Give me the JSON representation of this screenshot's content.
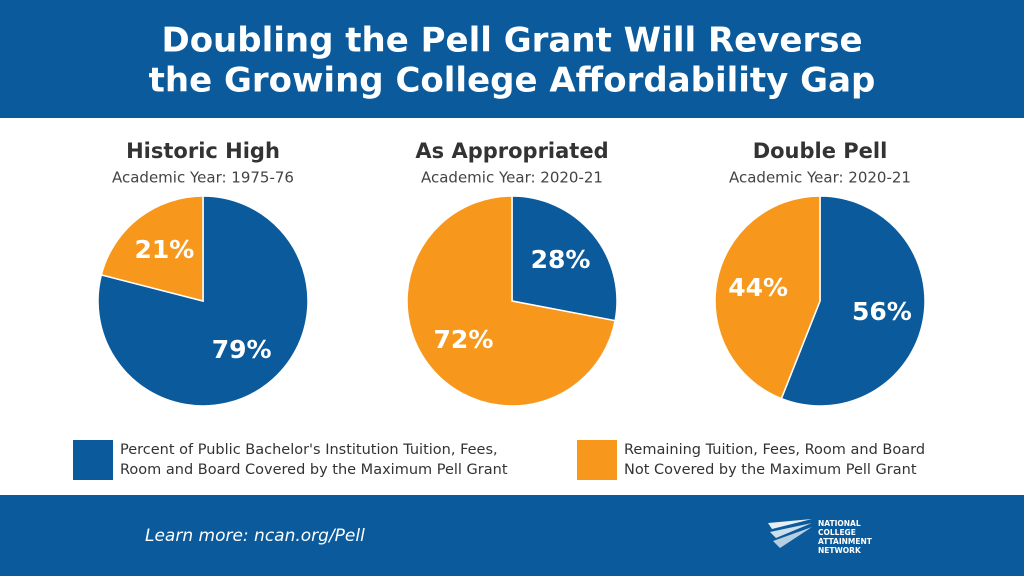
{
  "header": {
    "title_lines": [
      "Doubling the Pell Grant Will Reverse",
      "the Growing College Affordability Gap"
    ]
  },
  "chart_data": [
    {
      "type": "pie",
      "title": "Historic High",
      "subtitle": "Academic Year: 1975-76",
      "values": [
        79,
        21
      ],
      "value_labels": [
        "79%",
        "21%"
      ]
    },
    {
      "type": "pie",
      "title": "As Appropriated",
      "subtitle": "Academic Year: 2020-21",
      "values": [
        28,
        72
      ],
      "value_labels": [
        "28%",
        "72%"
      ]
    },
    {
      "type": "pie",
      "title": "Double Pell",
      "subtitle": "Academic Year: 2020-21",
      "values": [
        56,
        44
      ],
      "value_labels": [
        "56%",
        "44%"
      ]
    }
  ],
  "legend": {
    "items": [
      {
        "color": "#0a5a9c",
        "lines": [
          "Percent of Public Bachelor's Institution Tuition, Fees,",
          "Room and Board Covered by the Maximum Pell Grant"
        ]
      },
      {
        "color": "#f7981d",
        "lines": [
          "Remaining Tuition, Fees, Room and Board",
          "Not Covered by the Maximum Pell Grant"
        ]
      }
    ]
  },
  "footer": {
    "link_text": "Learn more: ncan.org/Pell",
    "logo_lines": [
      "NATIONAL",
      "COLLEGE",
      "ATTAINMENT",
      "NETWORK"
    ]
  }
}
